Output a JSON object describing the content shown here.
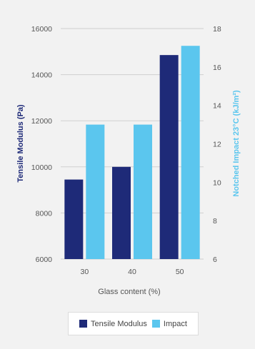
{
  "chart_data": {
    "type": "bar",
    "categories": [
      "30",
      "40",
      "50"
    ],
    "series": [
      {
        "name": "Tensile Modulus",
        "axis": "left",
        "color": "#1e2a78",
        "values": [
          9450,
          10000,
          14850
        ]
      },
      {
        "name": "Impact",
        "axis": "right",
        "color": "#5bc6ee",
        "values": [
          13.0,
          13.0,
          17.1
        ]
      }
    ],
    "xlabel": "Glass content (%)",
    "ylabel_left": "Tensile Modulus (Pa)",
    "ylabel_right": "Notched Impact 23°C (kJ/m²)",
    "ylim_left": [
      6000,
      16000
    ],
    "yticks_left": [
      6000,
      8000,
      10000,
      12000,
      14000,
      16000
    ],
    "ylim_right": [
      6,
      18
    ],
    "yticks_right": [
      6,
      8,
      10,
      12,
      14,
      16,
      18
    ],
    "grid": true,
    "legend_position": "bottom-center"
  }
}
